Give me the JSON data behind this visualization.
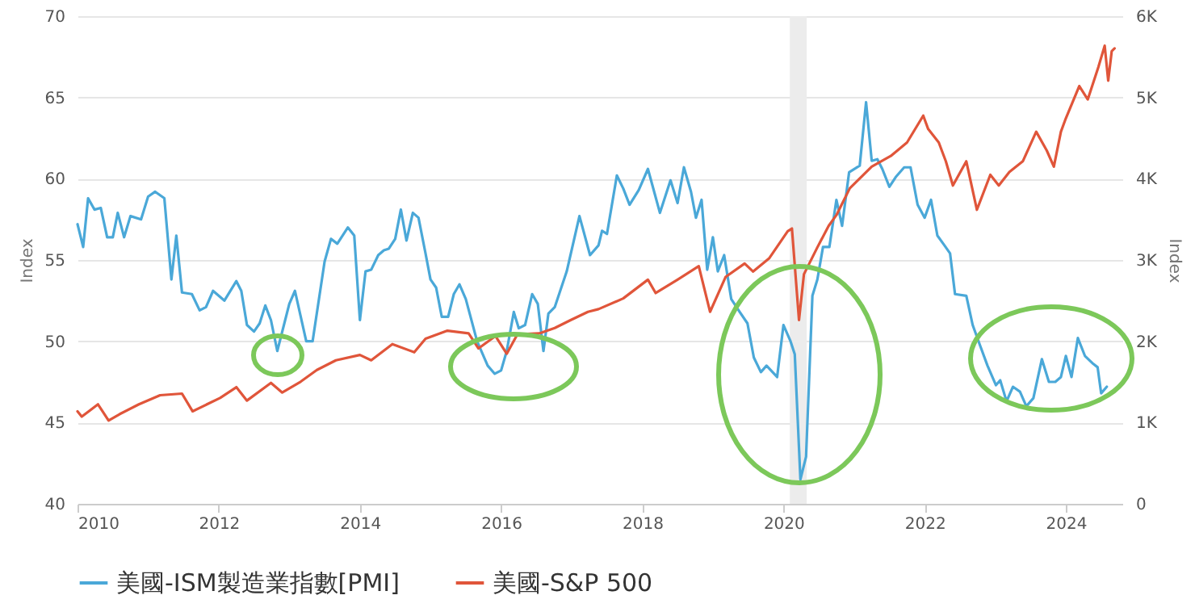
{
  "chart_data": {
    "type": "line",
    "xlabel": null,
    "ylabel": "Index",
    "y2label": "Index",
    "xlim": [
      2010,
      2024.8
    ],
    "xticks": [
      2010,
      2012,
      2014,
      2016,
      2018,
      2020,
      2022,
      2024
    ],
    "ylim": [
      40,
      70
    ],
    "yticks": [
      40,
      45,
      50,
      55,
      60,
      65,
      70
    ],
    "y2lim": [
      0,
      6000
    ],
    "y2ticks": [
      0,
      {
        "value": 1000,
        "label": "1K"
      },
      {
        "value": 2000,
        "label": "2K"
      },
      {
        "value": 3000,
        "label": "3K"
      },
      {
        "value": 4000,
        "label": "4K"
      },
      {
        "value": 5000,
        "label": "5K"
      },
      {
        "value": 6000,
        "label": "6K"
      }
    ],
    "grid": "y",
    "legend": "bottom",
    "bands": [
      {
        "axis": "x",
        "from": 2020.09,
        "to": 2020.33,
        "color": "#ececec"
      }
    ],
    "series": [
      {
        "name": "美國-ISM製造業指數[PMI]",
        "color": "#4aa8d8",
        "x": [
          2010.0,
          2010.08,
          2010.15,
          2010.24,
          2010.33,
          2010.42,
          2010.5,
          2010.57,
          2010.66,
          2010.75,
          2010.9,
          2011.0,
          2011.1,
          2011.23,
          2011.33,
          2011.4,
          2011.48,
          2011.62,
          2011.73,
          2011.82,
          2011.92,
          2012.08,
          2012.25,
          2012.32,
          2012.4,
          2012.5,
          2012.58,
          2012.66,
          2012.74,
          2012.83,
          2013.0,
          2013.08,
          2013.24,
          2013.33,
          2013.5,
          2013.59,
          2013.68,
          2013.83,
          2013.92,
          2014.0,
          2014.08,
          2014.16,
          2014.26,
          2014.34,
          2014.41,
          2014.5,
          2014.58,
          2014.66,
          2014.75,
          2014.83,
          2014.93,
          2015.0,
          2015.08,
          2015.16,
          2015.25,
          2015.33,
          2015.41,
          2015.5,
          2015.66,
          2015.81,
          2015.91,
          2016.0,
          2016.08,
          2016.18,
          2016.25,
          2016.34,
          2016.44,
          2016.52,
          2016.6,
          2016.67,
          2016.76,
          2016.93,
          2017.11,
          2017.26,
          2017.38,
          2017.43,
          2017.5,
          2017.64,
          2017.73,
          2017.82,
          2017.95,
          2018.08,
          2018.25,
          2018.4,
          2018.5,
          2018.59,
          2018.69,
          2018.76,
          2018.84,
          2018.92,
          2019.0,
          2019.07,
          2019.16,
          2019.26,
          2019.38,
          2019.49,
          2019.58,
          2019.68,
          2019.76,
          2019.91,
          2020.0,
          2020.1,
          2020.16,
          2020.24,
          2020.32,
          2020.41,
          2020.48,
          2020.56,
          2020.65,
          2020.75,
          2020.83,
          2020.93,
          2021.08,
          2021.17,
          2021.25,
          2021.33,
          2021.4,
          2021.5,
          2021.59,
          2021.71,
          2021.8,
          2021.9,
          2022.0,
          2022.09,
          2022.18,
          2022.28,
          2022.36,
          2022.43,
          2022.59,
          2022.68,
          2022.78,
          2022.89,
          2023.01,
          2023.07,
          2023.16,
          2023.25,
          2023.35,
          2023.44,
          2023.54,
          2023.66,
          2023.76,
          2023.85,
          2023.93,
          2024.0,
          2024.08,
          2024.17,
          2024.27,
          2024.39,
          2024.45,
          2024.5,
          2024.58
        ],
        "values": [
          57.2,
          55.8,
          58.8,
          58.1,
          58.2,
          56.4,
          56.4,
          57.9,
          56.4,
          57.7,
          57.5,
          58.9,
          59.2,
          58.8,
          53.8,
          56.5,
          53.0,
          52.9,
          51.9,
          52.1,
          53.1,
          52.5,
          53.7,
          53.1,
          51.0,
          50.6,
          51.1,
          52.2,
          51.3,
          49.4,
          52.3,
          53.1,
          50.0,
          50.0,
          54.9,
          56.3,
          56.0,
          57.0,
          56.5,
          51.3,
          54.3,
          54.4,
          55.3,
          55.6,
          55.7,
          56.3,
          58.1,
          56.2,
          57.9,
          57.6,
          55.4,
          53.8,
          53.3,
          51.5,
          51.5,
          52.9,
          53.5,
          52.6,
          50.0,
          48.5,
          48.0,
          48.2,
          49.4,
          51.8,
          50.8,
          51.0,
          52.9,
          52.3,
          49.4,
          51.7,
          52.1,
          54.3,
          57.7,
          55.3,
          55.9,
          56.8,
          56.6,
          60.2,
          59.4,
          58.4,
          59.3,
          60.6,
          57.9,
          59.9,
          58.5,
          60.7,
          59.2,
          57.6,
          58.7,
          54.4,
          56.4,
          54.3,
          55.3,
          52.6,
          51.8,
          51.1,
          49.0,
          48.1,
          48.5,
          47.8,
          51.0,
          50.0,
          49.2,
          41.5,
          42.9,
          52.8,
          53.8,
          55.8,
          55.8,
          58.7,
          57.1,
          60.4,
          60.8,
          64.7,
          61.1,
          61.2,
          60.6,
          59.5,
          60.1,
          60.7,
          60.7,
          58.4,
          57.6,
          58.7,
          56.5,
          55.9,
          55.4,
          52.9,
          52.8,
          51.0,
          49.8,
          48.5,
          47.3,
          47.6,
          46.3,
          47.2,
          46.9,
          46.0,
          46.5,
          48.9,
          47.5,
          47.5,
          47.8,
          49.1,
          47.8,
          50.2,
          49.1,
          48.6,
          48.4,
          46.8,
          47.2
        ]
      },
      {
        "name": "美國-S&P 500",
        "color": "#e0553a",
        "axis": "y2",
        "x": [
          2010.0,
          2010.06,
          2010.29,
          2010.44,
          2010.6,
          2010.87,
          2011.17,
          2011.48,
          2011.63,
          2012.02,
          2012.25,
          2012.4,
          2012.74,
          2012.9,
          2013.16,
          2013.39,
          2013.66,
          2014.0,
          2014.16,
          2014.46,
          2014.77,
          2014.93,
          2015.24,
          2015.54,
          2015.68,
          2015.92,
          2016.08,
          2016.23,
          2016.54,
          2016.76,
          2016.99,
          2017.23,
          2017.38,
          2017.73,
          2018.08,
          2018.19,
          2018.5,
          2018.8,
          2018.96,
          2019.18,
          2019.45,
          2019.57,
          2019.8,
          2020.06,
          2020.12,
          2020.22,
          2020.29,
          2020.48,
          2020.64,
          2020.75,
          2020.94,
          2021.25,
          2021.52,
          2021.75,
          2021.98,
          2022.05,
          2022.2,
          2022.3,
          2022.4,
          2022.59,
          2022.74,
          2022.93,
          2023.05,
          2023.2,
          2023.39,
          2023.58,
          2023.73,
          2023.83,
          2023.93,
          2024.0,
          2024.19,
          2024.31,
          2024.46,
          2024.55,
          2024.6,
          2024.65,
          2024.69
        ],
        "values": [
          1138,
          1072,
          1224,
          1025,
          1105,
          1224,
          1336,
          1356,
          1138,
          1303,
          1435,
          1270,
          1488,
          1369,
          1502,
          1647,
          1766,
          1832,
          1766,
          1965,
          1865,
          2031,
          2130,
          2097,
          1912,
          2064,
          1846,
          2084,
          2097,
          2163,
          2262,
          2362,
          2395,
          2527,
          2758,
          2593,
          2758,
          2924,
          2362,
          2791,
          2957,
          2858,
          3023,
          3354,
          3387,
          2262,
          2825,
          3155,
          3420,
          3552,
          3883,
          4148,
          4280,
          4445,
          4776,
          4611,
          4445,
          4214,
          3916,
          4214,
          3618,
          4048,
          3916,
          4082,
          4214,
          4578,
          4346,
          4148,
          4578,
          4743,
          5140,
          4975,
          5371,
          5636,
          5206,
          5570,
          5603
        ]
      }
    ]
  }
}
